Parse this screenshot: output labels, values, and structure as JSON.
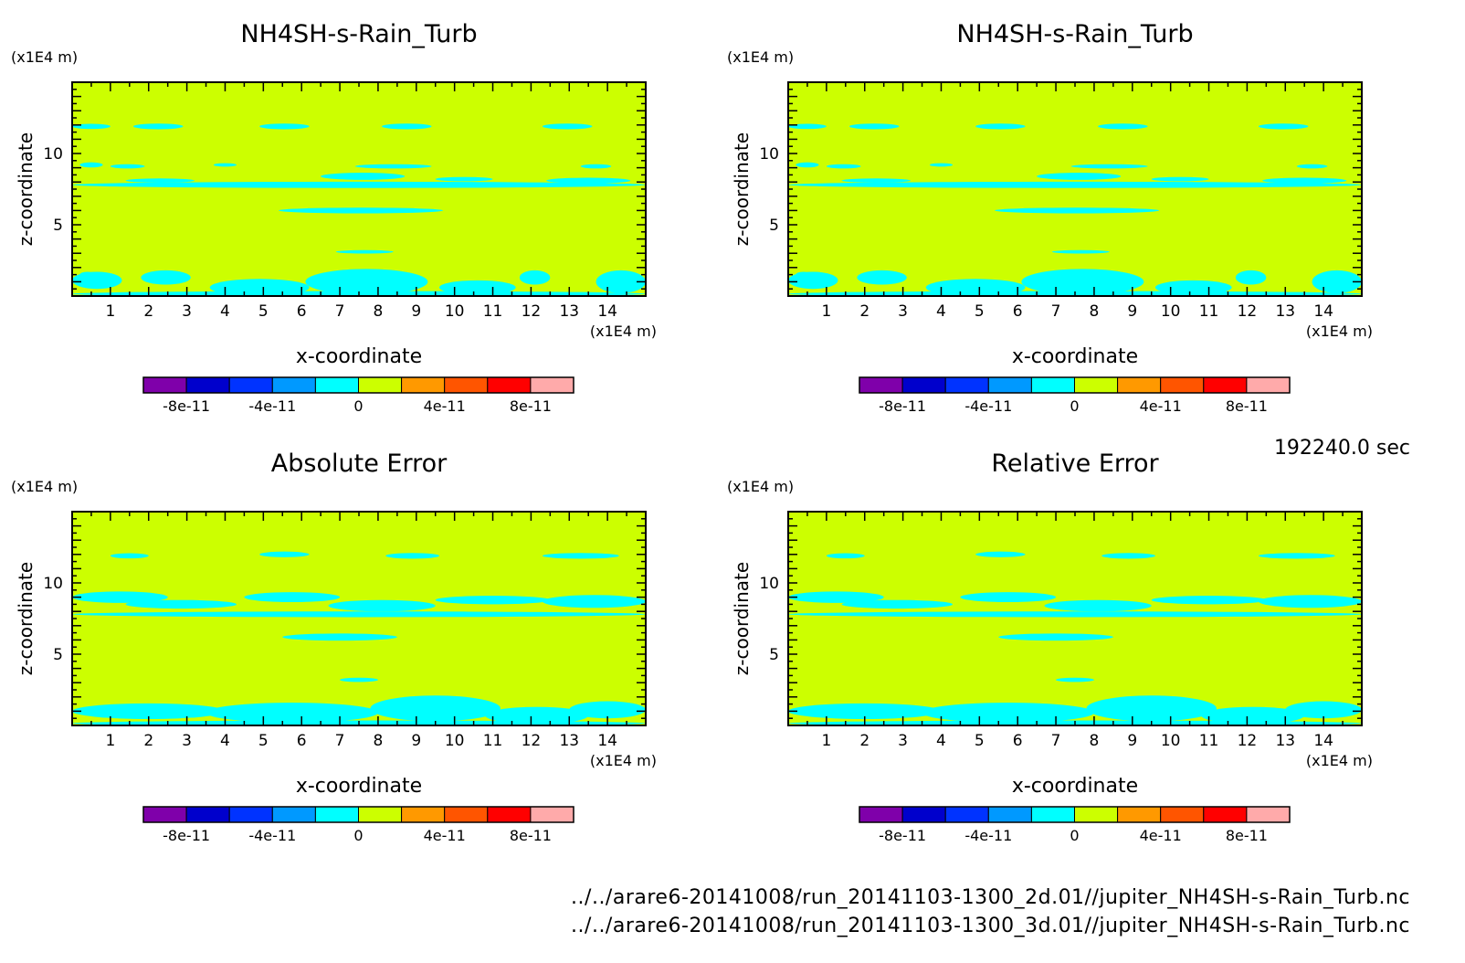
{
  "colors": {
    "plot_fill": "#ccff00",
    "contour_fill": "#00ffff",
    "frame": "#000000",
    "colorbar": [
      "#7f00aa",
      "#0000cc",
      "#0033ff",
      "#0099ff",
      "#00ffff",
      "#ccff00",
      "#ff9900",
      "#ff5500",
      "#ff0000",
      "#ffaaaa"
    ]
  },
  "timestamp": "192240.0 sec",
  "footer": {
    "line1": "../../arare6-20141008/run_20141103-1300_2d.01//jupiter_NH4SH-s-Rain_Turb.nc",
    "line2": "../../arare6-20141008/run_20141103-1300_3d.01//jupiter_NH4SH-s-Rain_Turb.nc"
  },
  "chart_data": [
    {
      "type": "heatmap",
      "title": "NH4SH-s-Rain_Turb",
      "xlabel": "x-coordinate",
      "ylabel": "z-coordinate",
      "x_unit": "(x1E4 m)",
      "y_unit": "(x1E4 m)",
      "xlim": [
        0,
        15
      ],
      "ylim": [
        0,
        15
      ],
      "x_ticks": [
        "1",
        "2",
        "3",
        "4",
        "5",
        "6",
        "7",
        "8",
        "9",
        "10",
        "11",
        "12",
        "13",
        "14"
      ],
      "y_ticks": [
        "5",
        "10"
      ],
      "colorbar_labels": [
        "-8e-11",
        "-4e-11",
        "0",
        "4e-11",
        "8e-11"
      ],
      "dominant_level": "0 to 2e-11",
      "contour_level": "-2e-11 to 0"
    },
    {
      "type": "heatmap",
      "title": "NH4SH-s-Rain_Turb",
      "xlabel": "x-coordinate",
      "ylabel": "z-coordinate",
      "x_unit": "(x1E4 m)",
      "y_unit": "(x1E4 m)",
      "xlim": [
        0,
        15
      ],
      "ylim": [
        0,
        15
      ],
      "x_ticks": [
        "1",
        "2",
        "3",
        "4",
        "5",
        "6",
        "7",
        "8",
        "9",
        "10",
        "11",
        "12",
        "13",
        "14"
      ],
      "y_ticks": [
        "5",
        "10"
      ],
      "colorbar_labels": [
        "-8e-11",
        "-4e-11",
        "0",
        "4e-11",
        "8e-11"
      ],
      "dominant_level": "0 to 2e-11",
      "contour_level": "-2e-11 to 0"
    },
    {
      "type": "heatmap",
      "title": "Absolute Error",
      "xlabel": "x-coordinate",
      "ylabel": "z-coordinate",
      "x_unit": "(x1E4 m)",
      "y_unit": "(x1E4 m)",
      "xlim": [
        0,
        15
      ],
      "ylim": [
        0,
        15
      ],
      "x_ticks": [
        "1",
        "2",
        "3",
        "4",
        "5",
        "6",
        "7",
        "8",
        "9",
        "10",
        "11",
        "12",
        "13",
        "14"
      ],
      "y_ticks": [
        "5",
        "10"
      ],
      "colorbar_labels": [
        "-8e-11",
        "-4e-11",
        "0",
        "4e-11",
        "8e-11"
      ],
      "dominant_level": "0 to 2e-11",
      "contour_level": "-2e-11 to 0"
    },
    {
      "type": "heatmap",
      "title": "Relative Error",
      "xlabel": "x-coordinate",
      "ylabel": "z-coordinate",
      "x_unit": "(x1E4 m)",
      "y_unit": "(x1E4 m)",
      "xlim": [
        0,
        15
      ],
      "ylim": [
        0,
        15
      ],
      "x_ticks": [
        "1",
        "2",
        "3",
        "4",
        "5",
        "6",
        "7",
        "8",
        "9",
        "10",
        "11",
        "12",
        "13",
        "14"
      ],
      "y_ticks": [
        "5",
        "10"
      ],
      "colorbar_labels": [
        "-8e-11",
        "-4e-11",
        "0",
        "4e-11",
        "8e-11"
      ],
      "dominant_level": "0 to 2e-11",
      "contour_level": "-2e-11 to 0"
    }
  ]
}
